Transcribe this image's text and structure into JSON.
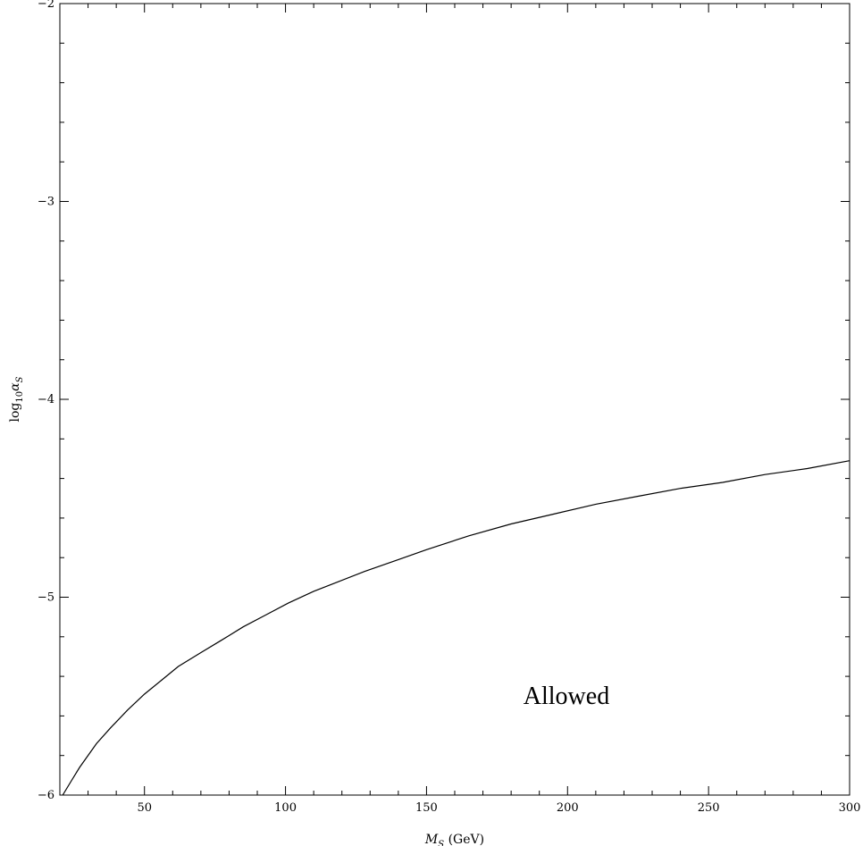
{
  "chart_data": {
    "type": "line",
    "title": "",
    "xlabel": {
      "main": "M",
      "sub": "S",
      "unit": " (GeV)"
    },
    "ylabel": {
      "main": "log",
      "sub": "10",
      "symbol": "α",
      "symbol_sub": "S"
    },
    "xlim": [
      20,
      300
    ],
    "ylim": [
      -6,
      -2
    ],
    "x_major_ticks": [
      50,
      100,
      150,
      200,
      250,
      300
    ],
    "x_tick_labels": [
      "50",
      "100",
      "150",
      "200",
      "250",
      "300"
    ],
    "x_minor_step": 10,
    "y_major_ticks": [
      -6,
      -5,
      -4,
      -3,
      -2
    ],
    "y_tick_labels": [
      "−6",
      "−5",
      "−4",
      "−3",
      "−2"
    ],
    "y_minor_step": 0.2,
    "grid": false,
    "annotation": "Allowed",
    "series": [
      {
        "x": [
          21,
          24,
          27,
          29,
          33,
          38,
          44,
          50,
          56,
          62,
          70,
          77,
          85,
          93,
          101,
          110,
          119,
          128,
          140,
          150,
          165,
          180,
          195,
          210,
          225,
          240,
          255,
          270,
          285,
          300
        ],
        "y": [
          -6.0,
          -5.93,
          -5.86,
          -5.82,
          -5.74,
          -5.66,
          -5.57,
          -5.49,
          -5.42,
          -5.35,
          -5.28,
          -5.22,
          -5.15,
          -5.09,
          -5.03,
          -4.97,
          -4.92,
          -4.87,
          -4.81,
          -4.76,
          -4.69,
          -4.63,
          -4.58,
          -4.53,
          -4.49,
          -4.45,
          -4.42,
          -4.38,
          -4.35,
          -4.31
        ]
      }
    ]
  }
}
